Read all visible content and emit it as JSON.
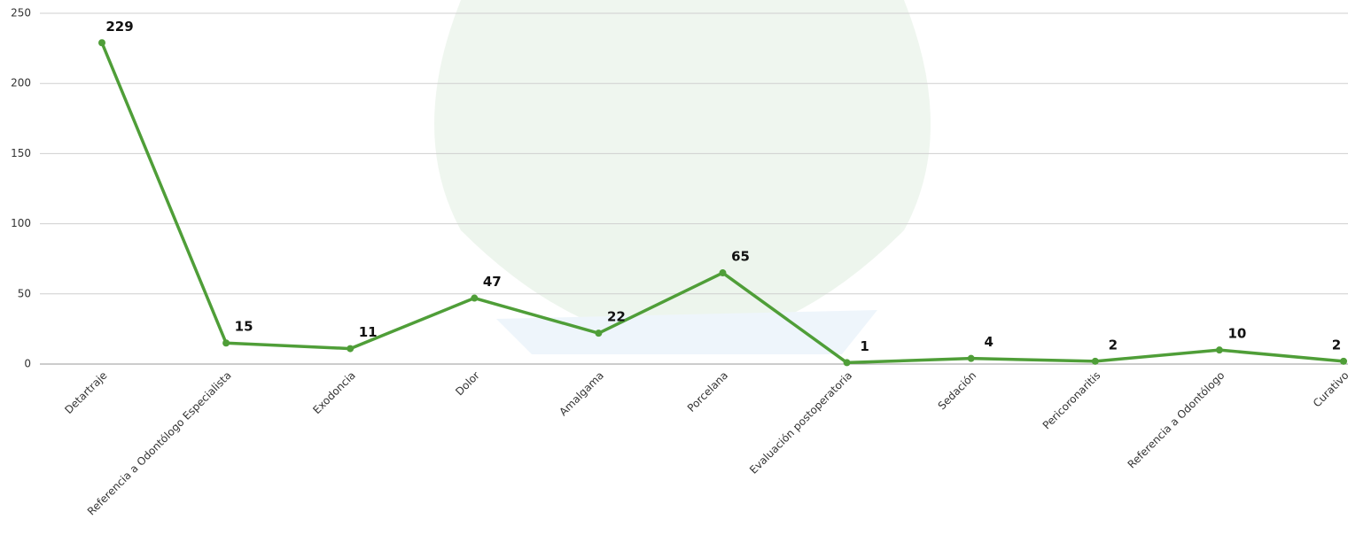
{
  "chart_data": {
    "type": "line",
    "categories": [
      "Detartraje",
      "Referencia a Odontólogo Especialista",
      "Exodoncia",
      "Dolor",
      "Amalgama",
      "Porcelana",
      "Evaluación postoperatoria",
      "Sedación",
      "Pericoronaritis",
      "Referencia a Odontólogo",
      "Curativo"
    ],
    "series": [
      {
        "color": "#4f9e38",
        "values": [
          229,
          15,
          11,
          47,
          22,
          65,
          1,
          4,
          2,
          10,
          2
        ]
      }
    ],
    "ylim": [
      0,
      250
    ],
    "yticks": [
      0,
      50,
      100,
      150,
      200,
      250
    ],
    "grid": true
  }
}
